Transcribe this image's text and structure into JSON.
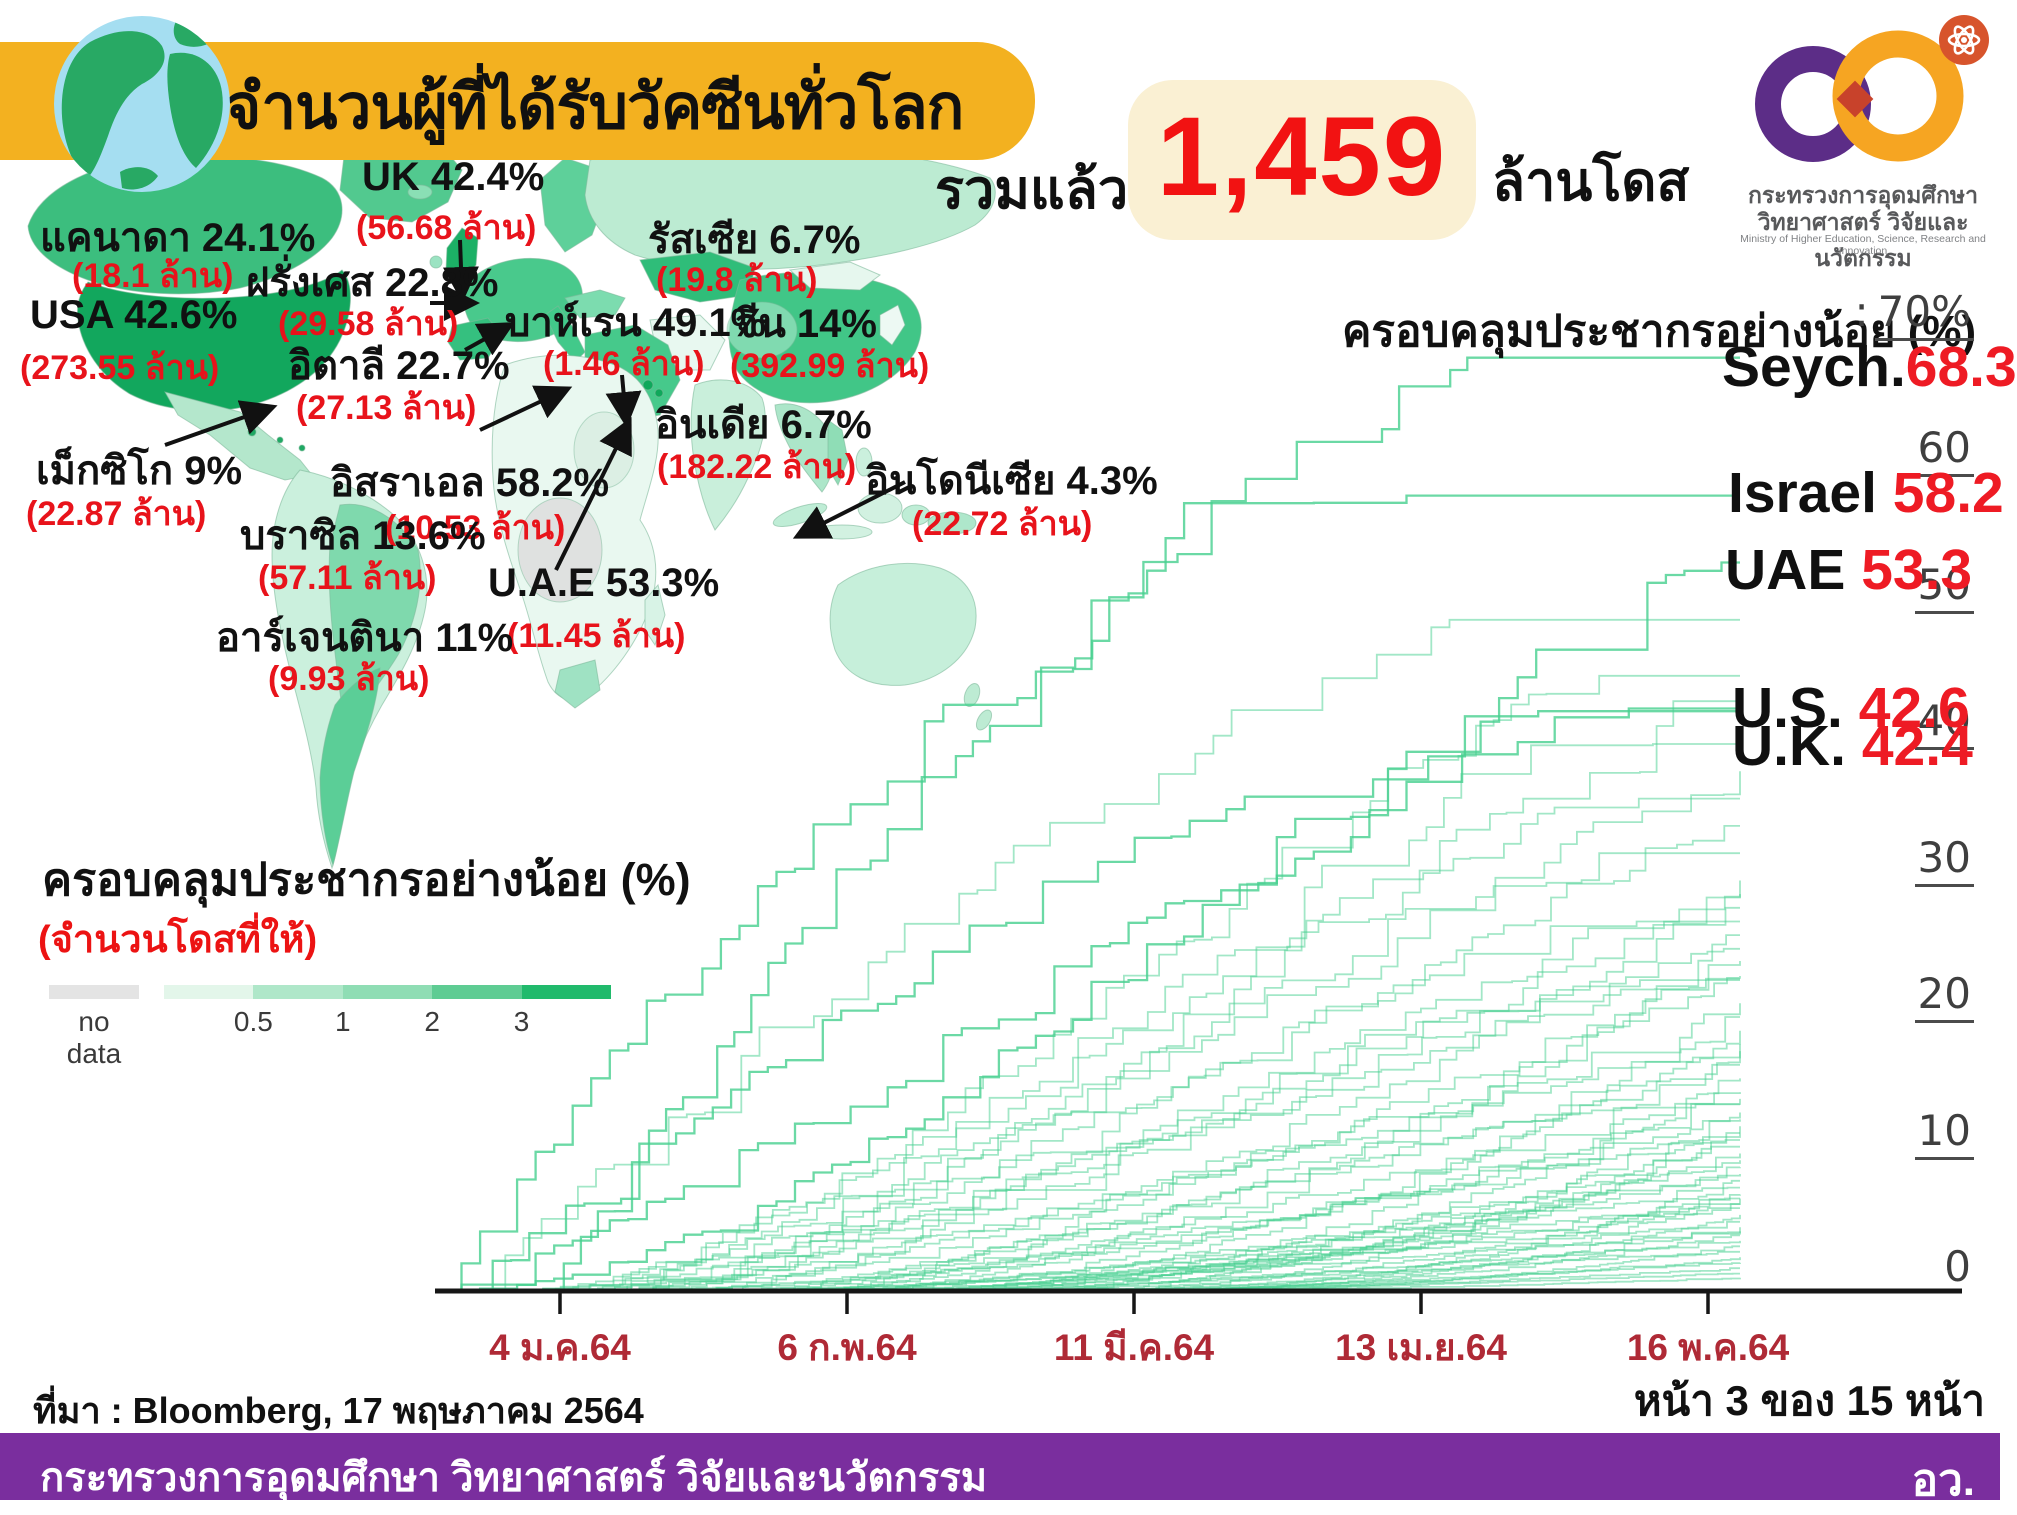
{
  "header": {
    "title": "จำนวนผู้ที่ได้รับวัคซีนทั่วโลก",
    "total_prefix": "รวมแล้ว",
    "total_value": "1,459",
    "total_suffix": "ล้านโดส"
  },
  "logo": {
    "org_line1": "กระทรวงการอุดมศึกษา",
    "org_line2": "วิทยาศาสตร์ วิจัยและนวัตกรรม",
    "org_line3": "Ministry of Higher Education, Science, Research and Innovation",
    "purple": "#5C2D87",
    "orange": "#F6A522",
    "overlap_red": "#C8422B",
    "badge_red": "#D7542C"
  },
  "map": {
    "labels": [
      {
        "id": "canada",
        "name": "แคนาดา 24.1%",
        "doses": "(18.1 ล้าน)"
      },
      {
        "id": "uk",
        "name": "UK 42.4%",
        "doses": "(56.68 ล้าน)"
      },
      {
        "id": "france",
        "name": "ฝรั่งเศส 22.8%",
        "doses": "(29.58 ล้าน)"
      },
      {
        "id": "russia",
        "name": "รัสเซีย 6.7%",
        "doses": "(19.8 ล้าน)"
      },
      {
        "id": "usa",
        "name": "USA 42.6%",
        "doses": "(273.55 ล้าน)"
      },
      {
        "id": "italy",
        "name": "อิตาลี 22.7%",
        "doses": "(27.13 ล้าน)"
      },
      {
        "id": "bahrain",
        "name": "บาห์เรน 49.1%",
        "doses": "(1.46 ล้าน)"
      },
      {
        "id": "china",
        "name": "จีน 14%",
        "doses": "(392.99 ล้าน)"
      },
      {
        "id": "india",
        "name": "อินเดีย 6.7%",
        "doses": "(182.22 ล้าน)"
      },
      {
        "id": "israel",
        "name": "อิสราเอล 58.2%",
        "doses": "(10.53 ล้าน)"
      },
      {
        "id": "indonesia",
        "name": "อินโดนีเซีย 4.3%",
        "doses": "(22.72 ล้าน)"
      },
      {
        "id": "mexico",
        "name": "เม็กซิโก 9%",
        "doses": "(22.87 ล้าน)"
      },
      {
        "id": "brazil",
        "name": "บราซิล 13.6%",
        "doses": "(57.11 ล้าน)"
      },
      {
        "id": "uae",
        "name": "U.A.E 53.3%",
        "doses": "(11.45 ล้าน)"
      },
      {
        "id": "argentina",
        "name": "อาร์เจนตินา 11%",
        "doses": "(9.93 ล้าน)"
      }
    ]
  },
  "legend": {
    "title": "ครอบคลุมประชากรอย่างน้อย (%)",
    "subtitle": "(จำนวนโดสที่ให้)",
    "no_data_label": "no data",
    "no_data_color": "#E4E4E4",
    "scale_labels": [
      "0.5",
      "1",
      "2",
      "3"
    ],
    "colors": [
      "#E3F6EA",
      "#AFE7C9",
      "#8FDDB4",
      "#5ECC93",
      "#21BA6C"
    ]
  },
  "chart_data": {
    "type": "line",
    "title": "ครอบคลุมประชากรอย่างน้อย (%)",
    "ylabel": "ครอบคลุมประชากรอย่างน้อย (%)",
    "ylim": [
      0,
      70
    ],
    "grid": false,
    "y_ticks": [
      0,
      10,
      20,
      30,
      40,
      50,
      60,
      70
    ],
    "y_top_tick_label": ": 70%",
    "x_tick_labels": [
      "4 ม.ค.64",
      "6 ก.พ.64",
      "11 มี.ค.64",
      "13 เม.ย.64",
      "16 พ.ค.64"
    ],
    "line_color": "#46CF8F",
    "labeled_series": [
      {
        "name": "Seych.",
        "value": 68.3,
        "start": 0.08,
        "curve": "fast"
      },
      {
        "name": "Israel",
        "value": 58.2,
        "start": 0.0,
        "curve": "fast3"
      },
      {
        "name": "UAE",
        "value": 53.3,
        "start": 0.0,
        "curve": "linear"
      },
      {
        "name": "U.S.",
        "value": 42.6,
        "start": 0.0,
        "curve": "s"
      },
      {
        "name": "U.K.",
        "value": 42.4,
        "start": 0.01,
        "curve": "fast2"
      }
    ],
    "background_series": [
      [
        49.1,
        0.02,
        "fast2"
      ],
      [
        45,
        0.05,
        "s"
      ],
      [
        44,
        0.1,
        "linear"
      ],
      [
        40,
        0.06,
        "s"
      ],
      [
        38,
        0.12,
        "linear"
      ],
      [
        36,
        0.09,
        "s"
      ],
      [
        34,
        0.15,
        "linear"
      ],
      [
        32,
        0.05,
        "s"
      ],
      [
        30,
        0.18,
        "linear"
      ],
      [
        29,
        0.1,
        "slow"
      ],
      [
        28,
        0.22,
        "linear"
      ],
      [
        27,
        0.07,
        "s"
      ],
      [
        26,
        0.25,
        "slow"
      ],
      [
        25,
        0.12,
        "linear"
      ],
      [
        24.1,
        0.15,
        "slow"
      ],
      [
        23,
        0.3,
        "linear"
      ],
      [
        22.8,
        0.08,
        "s"
      ],
      [
        22.7,
        0.1,
        "s"
      ],
      [
        21,
        0.35,
        "slow"
      ],
      [
        20,
        0.2,
        "linear"
      ],
      [
        19,
        0.28,
        "slow"
      ],
      [
        18,
        0.15,
        "linear"
      ],
      [
        17.5,
        0.38,
        "slow"
      ],
      [
        16.5,
        0.25,
        "linear"
      ],
      [
        15.5,
        0.42,
        "slow"
      ],
      [
        14.5,
        0.3,
        "linear"
      ],
      [
        14,
        0.12,
        "slow"
      ],
      [
        13.6,
        0.2,
        "s"
      ],
      [
        13,
        0.45,
        "slow"
      ],
      [
        12.5,
        0.33,
        "linear"
      ],
      [
        12,
        0.5,
        "slow"
      ],
      [
        11.5,
        0.26,
        "linear"
      ],
      [
        11,
        0.22,
        "slow"
      ],
      [
        10.5,
        0.48,
        "linear"
      ],
      [
        10,
        0.35,
        "slow"
      ],
      [
        9.5,
        0.52,
        "linear"
      ],
      [
        9,
        0.28,
        "slow"
      ],
      [
        8.5,
        0.4,
        "linear"
      ],
      [
        8,
        0.55,
        "slow"
      ],
      [
        7.5,
        0.32,
        "linear"
      ],
      [
        7,
        0.45,
        "slow"
      ],
      [
        6.7,
        0.18,
        "slow"
      ],
      [
        6.7,
        0.38,
        "linear"
      ],
      [
        6.3,
        0.5,
        "slow"
      ],
      [
        6,
        0.42,
        "linear"
      ],
      [
        5.5,
        0.55,
        "slow"
      ],
      [
        5,
        0.3,
        "linear"
      ],
      [
        4.6,
        0.48,
        "slow"
      ],
      [
        4.3,
        0.35,
        "linear"
      ],
      [
        4,
        0.52,
        "slow"
      ],
      [
        3.6,
        0.44,
        "linear"
      ],
      [
        3.2,
        0.58,
        "slow"
      ],
      [
        2.8,
        0.4,
        "linear"
      ],
      [
        2.4,
        0.5,
        "slow"
      ],
      [
        2,
        0.56,
        "linear"
      ],
      [
        1.6,
        0.46,
        "slow"
      ],
      [
        1.2,
        0.6,
        "linear"
      ],
      [
        0.9,
        0.52,
        "slow"
      ]
    ]
  },
  "source": "ที่มา : Bloomberg, 17 พฤษภาคม 2564",
  "page_indicator": "หน้า 3 ของ 15 หน้า",
  "footer": {
    "text": "กระทรวงการอุดมศึกษา วิทยาศาสตร์ วิจัยและนวัตกรรม",
    "abbr": "อว."
  }
}
